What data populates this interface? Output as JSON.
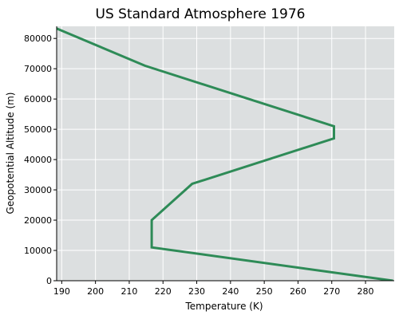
{
  "chart_data": {
    "type": "line",
    "title": "US Standard Atmosphere 1976",
    "xlabel": "Temperature (K)",
    "ylabel": "Geopotential Altitude (m)",
    "xlim": [
      188.5,
      288.5
    ],
    "ylim": [
      0,
      84000
    ],
    "xticks": [
      190,
      200,
      210,
      220,
      230,
      240,
      250,
      260,
      270,
      280
    ],
    "yticks": [
      0,
      10000,
      20000,
      30000,
      40000,
      50000,
      60000,
      70000,
      80000
    ],
    "grid": true,
    "legend": "none",
    "colors": {
      "plot_background": "#dcdfe0",
      "grid": "#ffffff",
      "series": "#2e8b57",
      "axis": "#000000"
    },
    "series": [
      {
        "x": [
          288.15,
          216.65,
          216.65,
          228.65,
          270.65,
          270.65,
          214.65,
          186.95
        ],
        "y": [
          0,
          11000,
          20000,
          32000,
          47000,
          51000,
          71000,
          84000
        ]
      }
    ]
  }
}
